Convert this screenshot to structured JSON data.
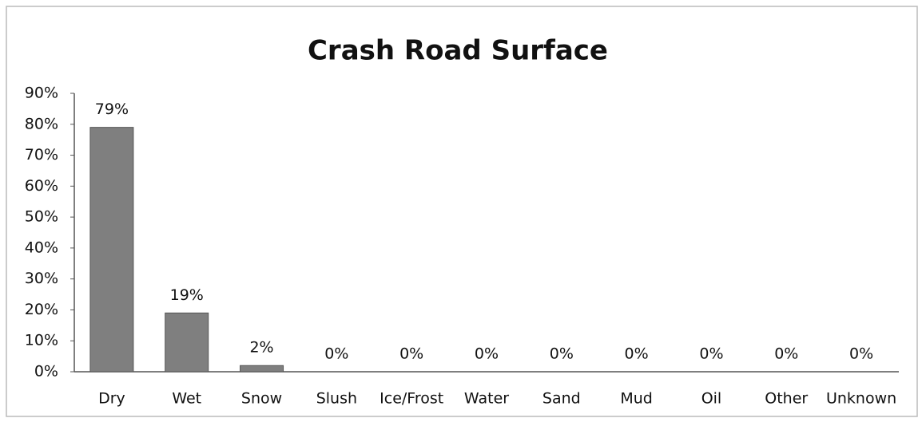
{
  "chart_data": {
    "type": "bar",
    "title": "Crash Road Surface",
    "categories": [
      "Dry",
      "Wet",
      "Snow",
      "Slush",
      "Ice/Frost",
      "Water",
      "Sand",
      "Mud",
      "Oil",
      "Other",
      "Unknown"
    ],
    "values": [
      79,
      19,
      2,
      0,
      0,
      0,
      0,
      0,
      0,
      0,
      0
    ],
    "value_labels": [
      "79%",
      "19%",
      "2%",
      "0%",
      "0%",
      "0%",
      "0%",
      "0%",
      "0%",
      "0%",
      "0%"
    ],
    "color": "#7f7f7f",
    "ylim": [
      0,
      90
    ],
    "yticks": [
      {
        "value": 0,
        "label": "0%"
      },
      {
        "value": 10,
        "label": "10%"
      },
      {
        "value": 20,
        "label": "20%"
      },
      {
        "value": 30,
        "label": "30%"
      },
      {
        "value": 40,
        "label": "40%"
      },
      {
        "value": 50,
        "label": "50%"
      },
      {
        "value": 60,
        "label": "60%"
      },
      {
        "value": 70,
        "label": "70%"
      },
      {
        "value": 80,
        "label": "80%"
      },
      {
        "value": 90,
        "label": "90%"
      }
    ],
    "grid": false
  }
}
